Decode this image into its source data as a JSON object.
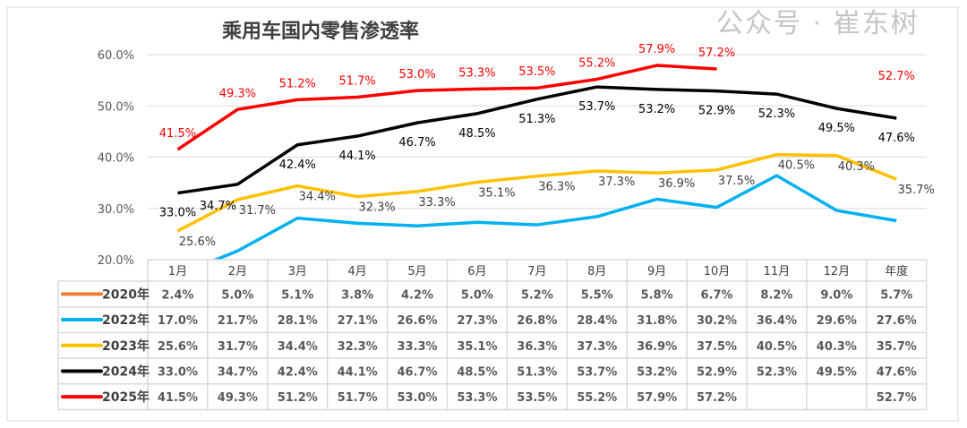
{
  "chart_data": {
    "type": "line",
    "title": "乘用车国内零售渗透率",
    "categories": [
      "1月",
      "2月",
      "3月",
      "4月",
      "5月",
      "6月",
      "7月",
      "8月",
      "9月",
      "10月",
      "11月",
      "12月",
      "年度"
    ],
    "ylim": [
      20,
      60
    ],
    "yticks": [
      "20.0%",
      "30.0%",
      "40.0%",
      "50.0%",
      "60.0%"
    ],
    "grid": true,
    "legend": "data-table-left",
    "series": [
      {
        "name": "2020年",
        "color": "#ED7D31",
        "values": [
          2.4,
          5.0,
          5.1,
          3.8,
          4.2,
          5.0,
          5.2,
          5.5,
          5.8,
          6.7,
          8.2,
          9.0,
          5.7
        ],
        "labels_on_chart": false
      },
      {
        "name": "2022年",
        "color": "#00B0F0",
        "values": [
          17.0,
          21.7,
          28.1,
          27.1,
          26.6,
          27.3,
          26.8,
          28.4,
          31.8,
          30.2,
          36.4,
          29.6,
          27.6
        ],
        "labels_on_chart": false
      },
      {
        "name": "2023年",
        "color": "#FFC000",
        "values": [
          25.6,
          31.7,
          34.4,
          32.3,
          33.3,
          35.1,
          36.3,
          37.3,
          36.9,
          37.5,
          40.5,
          40.3,
          35.7
        ],
        "labels_on_chart": true,
        "label_color": "#404040"
      },
      {
        "name": "2024年",
        "color": "#000000",
        "values": [
          33.0,
          34.7,
          42.4,
          44.1,
          46.7,
          48.5,
          51.3,
          53.7,
          53.2,
          52.9,
          52.3,
          49.5,
          47.6
        ],
        "labels_on_chart": true,
        "label_color": "#000000"
      },
      {
        "name": "2025年",
        "color": "#FF0000",
        "values": [
          41.5,
          49.3,
          51.2,
          51.7,
          53.0,
          53.3,
          53.5,
          55.2,
          57.9,
          57.2,
          null,
          null,
          52.7
        ],
        "labels_on_chart": true,
        "label_color": "#FF0000",
        "line_ends_at": "10月"
      }
    ]
  },
  "watermark": "公众号 · 崔东树"
}
